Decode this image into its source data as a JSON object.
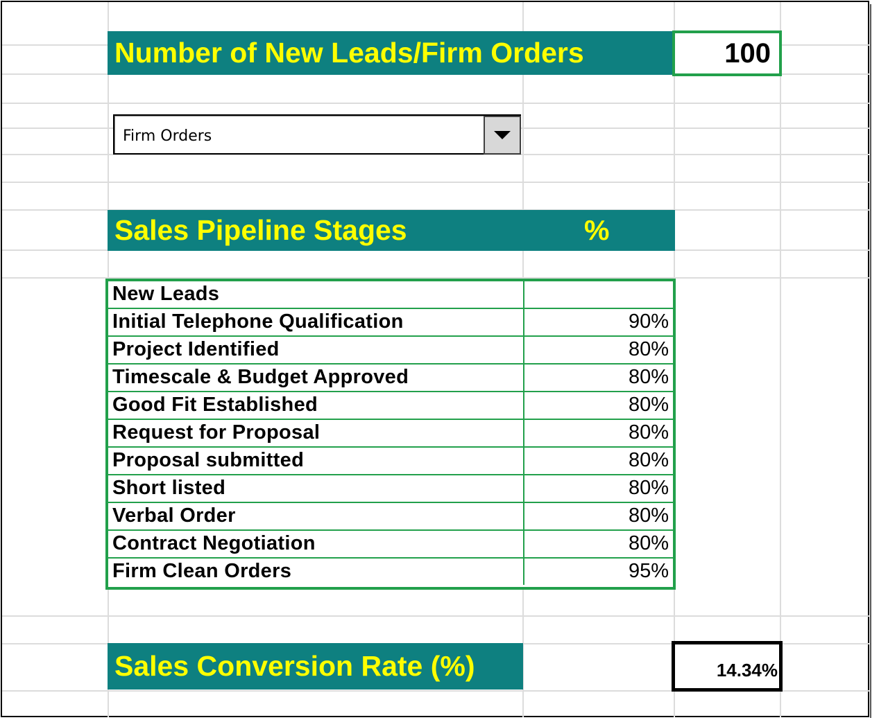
{
  "leads_header": {
    "label": "Number of New Leads/Firm Orders",
    "value": "100"
  },
  "mode_select": {
    "selected": "Firm Orders",
    "icon": "chevron-down-icon"
  },
  "pipeline_header": {
    "label": "Sales Pipeline Stages",
    "pct_label": "%"
  },
  "pipeline": {
    "stages": [
      {
        "name": "New Leads",
        "pct": ""
      },
      {
        "name": "Initial Telephone Qualification",
        "pct": "90%"
      },
      {
        "name": "Project Identified",
        "pct": "80%"
      },
      {
        "name": "Timescale & Budget Approved",
        "pct": "80%"
      },
      {
        "name": "Good Fit Established",
        "pct": "80%"
      },
      {
        "name": "Request for Proposal",
        "pct": "80%"
      },
      {
        "name": "Proposal submitted",
        "pct": "80%"
      },
      {
        "name": "Short listed",
        "pct": "80%"
      },
      {
        "name": "Verbal Order",
        "pct": "80%"
      },
      {
        "name": "Contract Negotiation",
        "pct": "80%"
      },
      {
        "name": "Firm Clean Orders",
        "pct": "95%"
      }
    ]
  },
  "conversion": {
    "label": "Sales Conversion Rate (%)",
    "value": "14.34%"
  },
  "colors": {
    "band": "#0e8080",
    "band_text": "#ffff00",
    "accent_green": "#22a04b",
    "grid": "#dcdcdc"
  }
}
